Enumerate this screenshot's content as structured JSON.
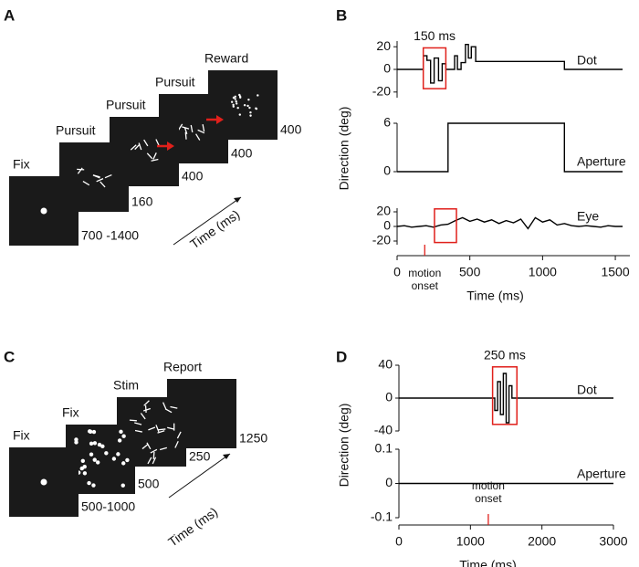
{
  "panel_a": {
    "label": "A",
    "time_label": "Time (ms)",
    "frames": [
      {
        "title": "Fix",
        "duration": "700 -1400"
      },
      {
        "title": "Pursuit",
        "duration": 160
      },
      {
        "title": "Pursuit",
        "duration": 400
      },
      {
        "title": "Pursuit",
        "duration": 400
      },
      {
        "title": "Reward",
        "duration": 400
      }
    ]
  },
  "panel_c": {
    "label": "C",
    "time_label": "Time (ms)",
    "frames": [
      {
        "title": "Fix",
        "duration": "500-1000"
      },
      {
        "title": "Fix",
        "duration": 500
      },
      {
        "title": "Stim",
        "duration": 250
      },
      {
        "title": "Report",
        "duration": 1250
      }
    ]
  },
  "chart_data": [
    {
      "type": "line",
      "label": "B",
      "ylabel": "Direction (deg)",
      "xlabel": "Time (ms)",
      "xlim": [
        0,
        1600
      ],
      "xticks": [
        0,
        500,
        1000,
        1500
      ],
      "annotation": {
        "x": 190,
        "lines": [
          "motion",
          "onset"
        ]
      },
      "subplots": [
        {
          "name": "Dot",
          "color": "#000000",
          "ylim": [
            -25,
            25
          ],
          "yticks": [
            -20,
            0,
            20
          ],
          "x": [
            0,
            180,
            180,
            205,
            205,
            230,
            230,
            255,
            255,
            285,
            285,
            310,
            310,
            335,
            335,
            395,
            395,
            415,
            415,
            440,
            440,
            470,
            470,
            490,
            490,
            510,
            510,
            540,
            540,
            1150,
            1150,
            1550
          ],
          "values": [
            0,
            0,
            12,
            12,
            8,
            8,
            -12,
            -12,
            10,
            10,
            -10,
            -10,
            5,
            5,
            0,
            0,
            12,
            12,
            0,
            0,
            6,
            6,
            22,
            22,
            10,
            10,
            20,
            20,
            7,
            7,
            0,
            0
          ],
          "highlight": {
            "label": "150 ms",
            "x": [
              180,
              335
            ],
            "y": [
              -17,
              19
            ]
          }
        },
        {
          "name": "Aperture",
          "color": "#000000",
          "ylim": [
            0,
            6
          ],
          "yticks": [
            0,
            6
          ],
          "x": [
            0,
            350,
            350,
            1150,
            1150,
            1550
          ],
          "values": [
            0,
            0,
            6,
            6,
            0,
            0
          ]
        },
        {
          "name": "Eye",
          "color": "#000000",
          "ylim": [
            -25,
            25
          ],
          "yticks": [
            -20,
            0,
            20
          ],
          "x": [
            0,
            50,
            100,
            150,
            200,
            250,
            300,
            350,
            400,
            450,
            500,
            550,
            600,
            650,
            700,
            750,
            800,
            850,
            900,
            950,
            1000,
            1050,
            1100,
            1150,
            1200,
            1250,
            1300,
            1350,
            1400,
            1450,
            1500,
            1550
          ],
          "values": [
            0,
            1,
            -1,
            0,
            1,
            -1,
            2,
            3,
            8,
            12,
            7,
            10,
            6,
            9,
            4,
            8,
            5,
            10,
            -3,
            12,
            6,
            9,
            2,
            4,
            1,
            0,
            1,
            0,
            -1,
            1,
            0,
            0
          ],
          "highlight": {
            "x": [
              257,
              408
            ],
            "y": [
              -22,
              24
            ]
          }
        }
      ]
    },
    {
      "type": "line",
      "label": "D",
      "ylabel": "Direction (deg)",
      "xlabel": "Time (ms)",
      "xlim": [
        0,
        3000
      ],
      "xticks": [
        0,
        1000,
        2000,
        3000
      ],
      "annotation": {
        "x": 1250,
        "lines": [
          "motion",
          "onset"
        ]
      },
      "subplots": [
        {
          "name": "Dot",
          "color": "#000000",
          "ylim": [
            -40,
            40
          ],
          "yticks": [
            -40,
            0,
            40
          ],
          "x": [
            0,
            1340,
            1340,
            1380,
            1380,
            1420,
            1420,
            1460,
            1460,
            1500,
            1500,
            1540,
            1540,
            1580,
            1580,
            3000
          ],
          "values": [
            0,
            0,
            -15,
            -15,
            20,
            20,
            -20,
            -20,
            30,
            30,
            -30,
            -30,
            15,
            15,
            0,
            0
          ],
          "highlight": {
            "label": "250 ms",
            "x": [
              1310,
              1650
            ],
            "y": [
              -32,
              38
            ]
          }
        },
        {
          "name": "Aperture",
          "color": "#000000",
          "ylim": [
            -0.1,
            0.1
          ],
          "yticks": [
            -0.1,
            0,
            0.1
          ],
          "x": [
            0,
            3000
          ],
          "values": [
            0,
            0
          ]
        }
      ]
    }
  ]
}
